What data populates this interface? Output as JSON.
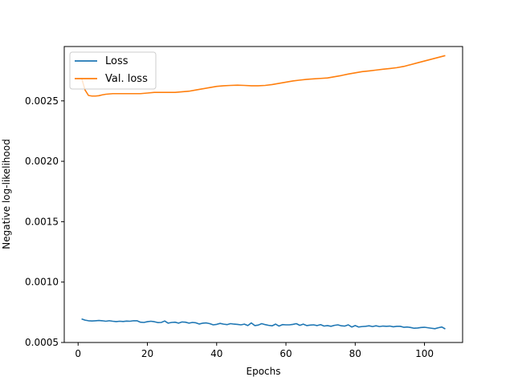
{
  "chart_data": {
    "type": "line",
    "title": "",
    "xlabel": "Epochs",
    "ylabel": "Negative log-likelihood",
    "xlim": [
      -4,
      111
    ],
    "ylim": [
      0.0005,
      0.00295
    ],
    "xticks": [
      0,
      20,
      40,
      60,
      80,
      100
    ],
    "xtick_labels": [
      "0",
      "20",
      "40",
      "60",
      "80",
      "100"
    ],
    "yticks": [
      0.0005,
      0.001,
      0.0015,
      0.002,
      0.0025
    ],
    "ytick_labels": [
      "0.0005",
      "0.0010",
      "0.0015",
      "0.0020",
      "0.0025"
    ],
    "grid": false,
    "legend_position": "top-left",
    "series": [
      {
        "name": "Loss",
        "color": "#1f77b4",
        "x": [
          1,
          2,
          3,
          4,
          5,
          6,
          7,
          8,
          9,
          10,
          11,
          12,
          13,
          14,
          15,
          16,
          17,
          18,
          19,
          20,
          21,
          22,
          23,
          24,
          25,
          26,
          27,
          28,
          29,
          30,
          31,
          32,
          33,
          34,
          35,
          36,
          37,
          38,
          39,
          40,
          41,
          42,
          43,
          44,
          45,
          46,
          47,
          48,
          49,
          50,
          51,
          52,
          53,
          54,
          55,
          56,
          57,
          58,
          59,
          60,
          61,
          62,
          63,
          64,
          65,
          66,
          67,
          68,
          69,
          70,
          71,
          72,
          73,
          74,
          75,
          76,
          77,
          78,
          79,
          80,
          81,
          82,
          83,
          84,
          85,
          86,
          87,
          88,
          89,
          90,
          91,
          92,
          93,
          94,
          95,
          96,
          97,
          98,
          99,
          100,
          101,
          102,
          103,
          104,
          105,
          106
        ],
        "y": [
          0.000695,
          0.000685,
          0.00068,
          0.000678,
          0.00068,
          0.000682,
          0.00068,
          0.000676,
          0.00068,
          0.000676,
          0.000673,
          0.000676,
          0.000674,
          0.000677,
          0.000676,
          0.00068,
          0.00068,
          0.000668,
          0.000666,
          0.000672,
          0.000676,
          0.000672,
          0.000665,
          0.000666,
          0.000678,
          0.00066,
          0.000666,
          0.000668,
          0.00066,
          0.00067,
          0.000668,
          0.00066,
          0.000666,
          0.000663,
          0.000653,
          0.00066,
          0.000662,
          0.000656,
          0.000646,
          0.00065,
          0.000658,
          0.000652,
          0.000648,
          0.000656,
          0.000652,
          0.00065,
          0.000646,
          0.000652,
          0.00064,
          0.000662,
          0.00064,
          0.000644,
          0.000656,
          0.000648,
          0.000642,
          0.000638,
          0.000652,
          0.000636,
          0.000648,
          0.000646,
          0.000646,
          0.00065,
          0.000656,
          0.000642,
          0.000652,
          0.00064,
          0.000644,
          0.000646,
          0.00064,
          0.000648,
          0.000636,
          0.00064,
          0.000634,
          0.000642,
          0.000646,
          0.000638,
          0.000636,
          0.000646,
          0.000628,
          0.00064,
          0.000628,
          0.000632,
          0.000634,
          0.000638,
          0.000632,
          0.000638,
          0.000632,
          0.000636,
          0.000634,
          0.000636,
          0.00063,
          0.000634,
          0.000634,
          0.000626,
          0.000628,
          0.000624,
          0.000618,
          0.00062,
          0.000624,
          0.000626,
          0.000622,
          0.000618,
          0.000614,
          0.000622,
          0.000628,
          0.000612
        ]
      },
      {
        "name": "Val. loss",
        "color": "#ff7f0e",
        "x": [
          1,
          2,
          3,
          4,
          5,
          6,
          7,
          8,
          10,
          12,
          14,
          16,
          18,
          20,
          22,
          24,
          26,
          28,
          30,
          32,
          34,
          36,
          38,
          40,
          42,
          44,
          46,
          48,
          50,
          52,
          54,
          56,
          58,
          60,
          62,
          64,
          66,
          68,
          70,
          72,
          74,
          76,
          78,
          80,
          82,
          84,
          86,
          88,
          90,
          92,
          94,
          96,
          98,
          100,
          102,
          104,
          106
        ],
        "y": [
          0.00269,
          0.00259,
          0.002545,
          0.00254,
          0.00254,
          0.002543,
          0.00255,
          0.002555,
          0.00256,
          0.00256,
          0.00256,
          0.00256,
          0.00256,
          0.002565,
          0.00257,
          0.00257,
          0.00257,
          0.00257,
          0.002575,
          0.00258,
          0.00259,
          0.0026,
          0.00261,
          0.00262,
          0.002625,
          0.002628,
          0.00263,
          0.002628,
          0.002625,
          0.002625,
          0.002628,
          0.002635,
          0.002645,
          0.002655,
          0.002665,
          0.002672,
          0.002678,
          0.002682,
          0.002686,
          0.00269,
          0.0027,
          0.00271,
          0.002722,
          0.002732,
          0.002742,
          0.002748,
          0.002755,
          0.002762,
          0.002768,
          0.002775,
          0.002785,
          0.0028,
          0.002815,
          0.00283,
          0.002845,
          0.00286,
          0.002875
        ]
      }
    ]
  }
}
